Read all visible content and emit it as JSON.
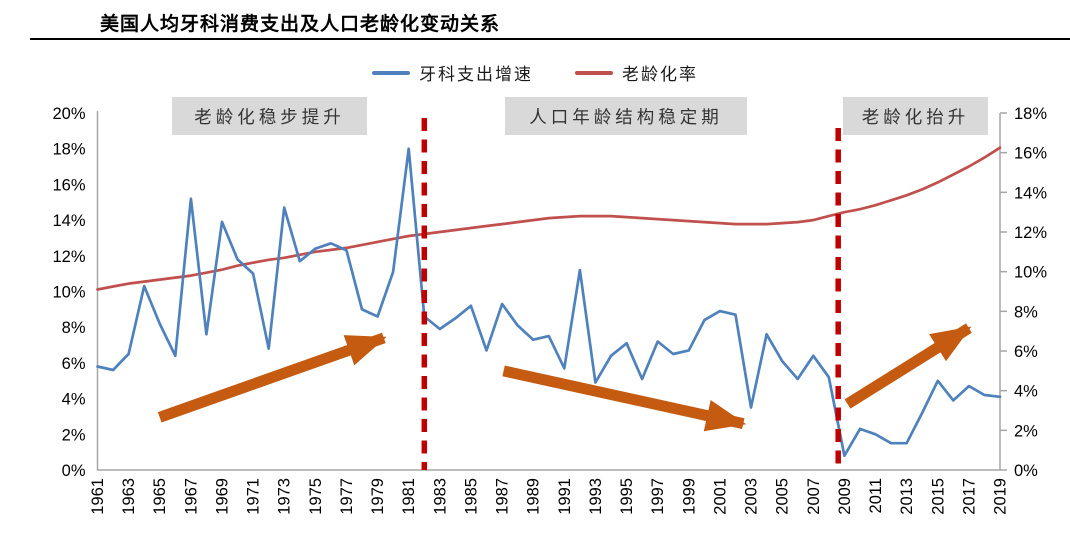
{
  "header": {
    "title": "美国人均牙科消费支出及人口老龄化变动关系"
  },
  "legend": [
    {
      "label": "牙科支出增速",
      "color": "#4F81BD"
    },
    {
      "label": "老龄化率",
      "color": "#C0504D"
    }
  ],
  "annotations": [
    {
      "label": "老龄化稳步提升"
    },
    {
      "label": "人口年龄结构稳定期"
    },
    {
      "label": "老龄化抬升"
    }
  ],
  "chart_data": {
    "type": "line",
    "title": "美国人均牙科消费支出及人口老龄化变动关系",
    "x": [
      1961,
      1962,
      1963,
      1964,
      1965,
      1966,
      1967,
      1968,
      1969,
      1970,
      1971,
      1972,
      1973,
      1974,
      1975,
      1976,
      1977,
      1978,
      1979,
      1980,
      1981,
      1982,
      1983,
      1984,
      1985,
      1986,
      1987,
      1988,
      1989,
      1990,
      1991,
      1992,
      1993,
      1994,
      1995,
      1996,
      1997,
      1998,
      1999,
      2000,
      2001,
      2002,
      2003,
      2004,
      2005,
      2006,
      2007,
      2008,
      2009,
      2010,
      2011,
      2012,
      2013,
      2014,
      2015,
      2016,
      2017,
      2018,
      2019
    ],
    "x_tick_step": 2,
    "series": [
      {
        "name": "牙科支出增速",
        "axis": "left",
        "color": "#4F81BD",
        "values": [
          5.8,
          5.6,
          6.5,
          10.3,
          8.2,
          6.4,
          15.2,
          7.6,
          13.9,
          11.8,
          11.0,
          6.8,
          14.7,
          11.7,
          12.4,
          12.7,
          12.3,
          9.0,
          8.6,
          11.1,
          18.0,
          8.6,
          7.9,
          8.5,
          9.2,
          6.7,
          9.3,
          8.1,
          7.3,
          7.5,
          5.7,
          11.2,
          4.9,
          6.4,
          7.1,
          5.1,
          7.2,
          6.5,
          6.7,
          8.4,
          8.9,
          8.7,
          3.5,
          7.6,
          6.1,
          5.1,
          6.4,
          5.2,
          0.8,
          2.3,
          2.0,
          1.5,
          1.5,
          3.2,
          5.0,
          3.9,
          4.7,
          4.2,
          4.1
        ]
      },
      {
        "name": "老龄化率",
        "axis": "right",
        "color": "#C0504D",
        "values": [
          9.1,
          9.25,
          9.4,
          9.5,
          9.6,
          9.7,
          9.8,
          9.95,
          10.1,
          10.3,
          10.45,
          10.6,
          10.7,
          10.85,
          11.0,
          11.1,
          11.2,
          11.35,
          11.5,
          11.65,
          11.8,
          11.9,
          12.0,
          12.1,
          12.2,
          12.3,
          12.4,
          12.5,
          12.6,
          12.7,
          12.75,
          12.8,
          12.8,
          12.8,
          12.75,
          12.7,
          12.65,
          12.6,
          12.55,
          12.5,
          12.45,
          12.4,
          12.4,
          12.4,
          12.45,
          12.5,
          12.6,
          12.8,
          13.0,
          13.15,
          13.35,
          13.6,
          13.85,
          14.15,
          14.5,
          14.9,
          15.3,
          15.75,
          16.25
        ]
      }
    ],
    "left_axis": {
      "min": 0,
      "max": 20,
      "step": 2,
      "format": "percent"
    },
    "right_axis": {
      "min": 0,
      "max": 18,
      "step": 2,
      "format": "percent"
    },
    "grid": false,
    "legend_position": "top",
    "phase_lines": {
      "color": "#C00000",
      "years": [
        1982,
        2008.6
      ],
      "tops": [
        118,
        128
      ]
    },
    "arrows": {
      "color": "#C55A11",
      "segments": [
        {
          "x1": 1965.0,
          "y1": 2.95,
          "x2": 1979.4,
          "y2": 7.4
        },
        {
          "x1": 1987.1,
          "y1": 5.55,
          "x2": 2002.5,
          "y2": 2.6
        },
        {
          "x1": 2009.2,
          "y1": 3.7,
          "x2": 2017.0,
          "y2": 7.95
        }
      ]
    }
  }
}
